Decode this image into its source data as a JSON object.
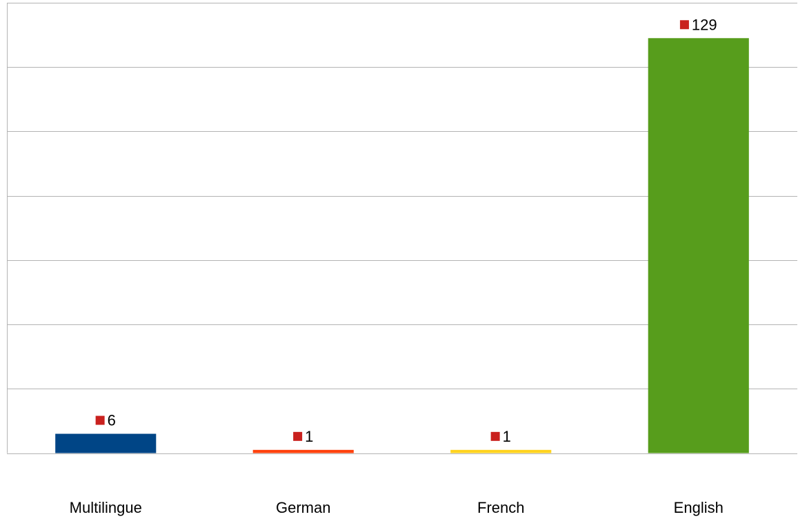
{
  "chart_data": {
    "type": "bar",
    "categories": [
      "Multilingue",
      "German",
      "French",
      "English"
    ],
    "values": [
      6,
      1,
      1,
      129
    ],
    "colors": [
      "#004586",
      "#ff420e",
      "#ffd320",
      "#579d1c"
    ],
    "label_marker_color": "#c9211e",
    "title": "",
    "xlabel": "",
    "ylabel": "",
    "ylim": [
      0,
      140
    ],
    "y_gridlines": [
      0,
      20,
      40,
      60,
      80,
      100,
      120,
      140
    ],
    "grid": true,
    "legend": "none"
  }
}
